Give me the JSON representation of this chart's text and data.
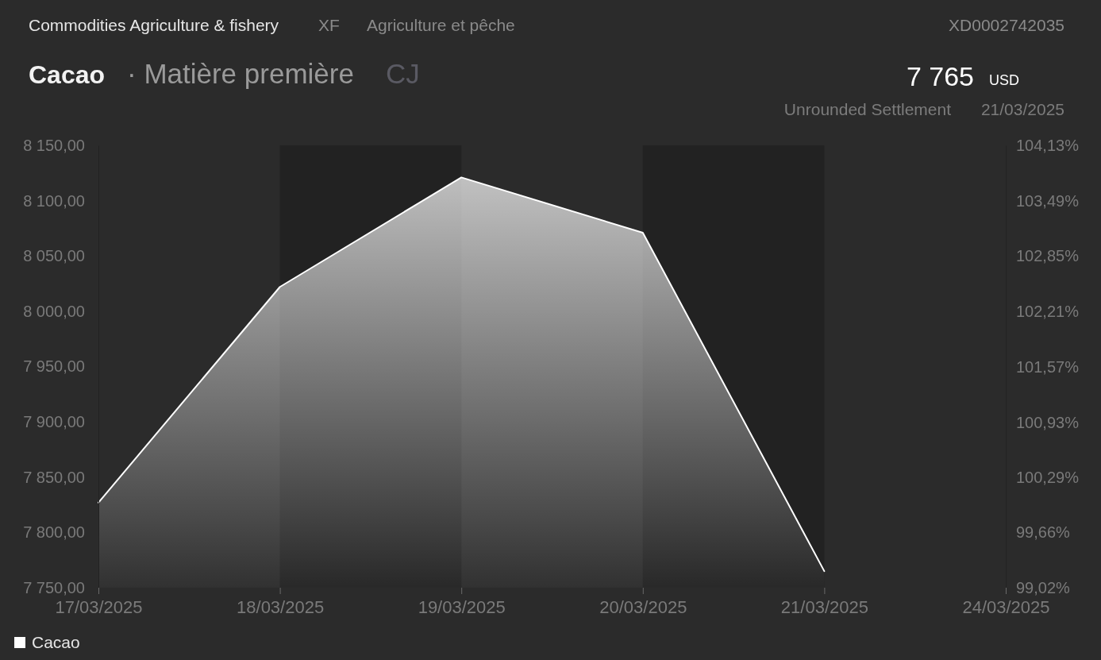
{
  "chart_data": {
    "type": "area",
    "title": "Cacao",
    "subtitle": "· Matière première",
    "annotations": [
      "Commodities Agriculture & fishery",
      "XF",
      "Agriculture et pêche",
      "XD0002742035",
      "CJ",
      "7 765",
      "USD",
      "Unrounded Settlement",
      "21/03/2025"
    ],
    "categories": [
      "17/03/2025",
      "18/03/2025",
      "19/03/2025",
      "20/03/2025",
      "21/03/2025",
      "24/03/2025"
    ],
    "series": [
      {
        "name": "Cacao",
        "color": "#ffffff",
        "values": [
          7827,
          8022,
          8121,
          8071,
          7765,
          null
        ]
      }
    ],
    "ylim": [
      7750,
      8150
    ],
    "yticks": [
      {
        "value": 7750,
        "label": "7 750,00"
      },
      {
        "value": 7800,
        "label": "7 800,00"
      },
      {
        "value": 7850,
        "label": "7 850,00"
      },
      {
        "value": 7900,
        "label": "7 900,00"
      },
      {
        "value": 7950,
        "label": "7 950,00"
      },
      {
        "value": 8000,
        "label": "8 000,00"
      },
      {
        "value": 8050,
        "label": "8 050,00"
      },
      {
        "value": 8100,
        "label": "8 100,00"
      },
      {
        "value": 8150,
        "label": "8 150,00"
      }
    ],
    "y2lim": [
      99.02,
      104.13
    ],
    "y2ticks": [
      {
        "value": 99.02,
        "label": "99,02%"
      },
      {
        "value": 99.66,
        "label": "99,66%"
      },
      {
        "value": 100.29,
        "label": "100,29%"
      },
      {
        "value": 100.93,
        "label": "100,93%"
      },
      {
        "value": 101.57,
        "label": "101,57%"
      },
      {
        "value": 102.21,
        "label": "102,21%"
      },
      {
        "value": 102.85,
        "label": "102,85%"
      },
      {
        "value": 103.49,
        "label": "103,49%"
      },
      {
        "value": 104.13,
        "label": "104,13%"
      }
    ],
    "bands": [
      {
        "axis": "x",
        "from": "18/03/2025",
        "to": "19/03/2025",
        "color": "#222222"
      },
      {
        "axis": "x",
        "from": "20/03/2025",
        "to": "21/03/2025",
        "color": "#222222"
      }
    ],
    "legend": "bottom left"
  }
}
